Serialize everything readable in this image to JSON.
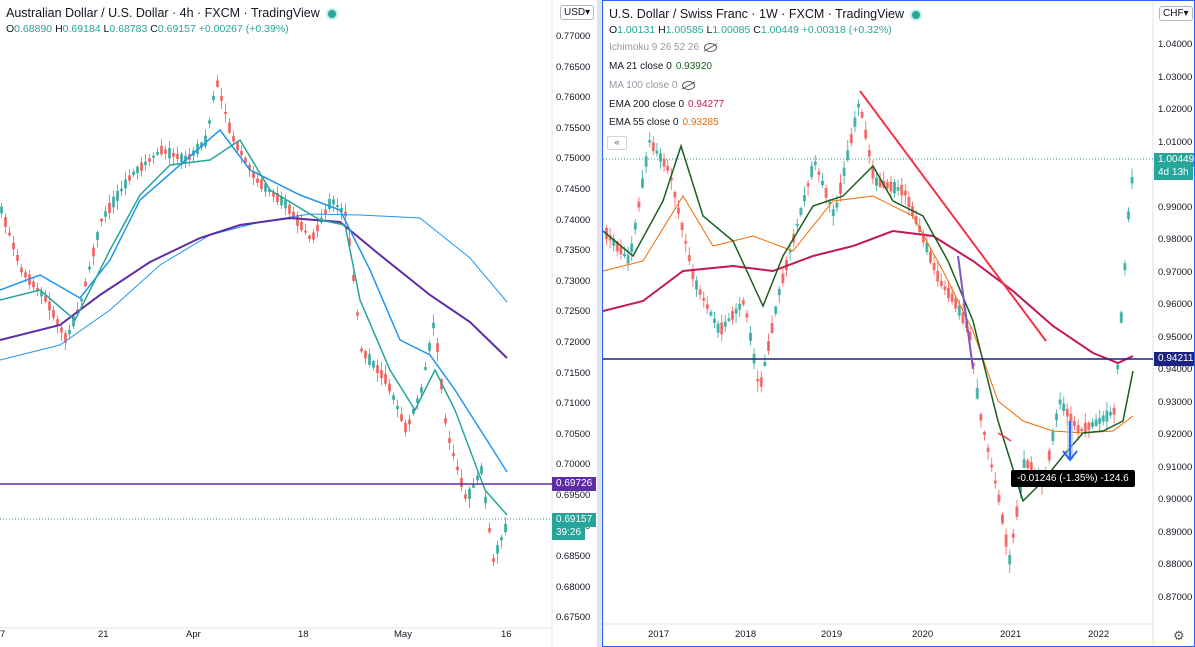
{
  "left_chart": {
    "title": "Australian Dollar / U.S. Dollar · 4h · FXCM · TradingView",
    "ohlc": {
      "o_label": "O",
      "o": "0.68890",
      "h_label": "H",
      "h": "0.69184",
      "l_label": "L",
      "l": "0.68783",
      "c_label": "C",
      "c": "0.69157",
      "chg": "+0.00267 (+0.39%)"
    },
    "currency": "USD▾",
    "price_ticks": [
      "0.77000",
      "0.76500",
      "0.76000",
      "0.75500",
      "0.75000",
      "0.74500",
      "0.74000",
      "0.73500",
      "0.73000",
      "0.72500",
      "0.72000",
      "0.71500",
      "0.71000",
      "0.70500",
      "0.70000",
      "0.69500",
      "0.69000",
      "0.68500",
      "0.68000",
      "0.67500"
    ],
    "time_ticks": [
      "7",
      "21",
      "Apr",
      "18",
      "May",
      "16"
    ],
    "hline_label": "0.69726",
    "last_price": "0.69157",
    "countdown": "39:26",
    "colors": {
      "up": "#26a69a",
      "down": "#ef5350",
      "hline": "#5e2ca5",
      "ema200": "#5e2ca5",
      "ma100": "#2196f3",
      "ema55": "#2196f3",
      "ma21": "#26a69a",
      "ma_fast": "#00897b"
    }
  },
  "right_chart": {
    "title": "U.S. Dollar / Swiss Franc · 1W · FXCM · TradingView",
    "ohlc": {
      "o_label": "O",
      "o": "1.00131",
      "h_label": "H",
      "h": "1.00585",
      "l_label": "L",
      "l": "1.00085",
      "c_label": "C",
      "c": "1.00449",
      "chg": "+0.00318 (+0.32%)"
    },
    "currency": "CHF▾",
    "indicators": [
      {
        "label": "Ichimoku 9 26 52 26",
        "value": "",
        "color": "#9598a1",
        "hidden": true
      },
      {
        "label": "MA 21 close 0",
        "value": "0.93920",
        "color": "#1b5e20",
        "hidden": false
      },
      {
        "label": "MA 100 close 0",
        "value": "",
        "color": "#9598a1",
        "hidden": true
      },
      {
        "label": "EMA 200 close 0",
        "value": "0.94277",
        "color": "#c2185b",
        "hidden": false
      },
      {
        "label": "EMA 55 close 0",
        "value": "0.93285",
        "color": "#ef6c00",
        "hidden": false
      }
    ],
    "collapse_icon": "«",
    "price_ticks": [
      "1.04000",
      "1.03000",
      "1.02000",
      "1.01000",
      "1.00000",
      "0.99000",
      "0.98000",
      "0.97000",
      "0.96000",
      "0.95000",
      "0.94000",
      "0.93000",
      "0.92000",
      "0.91000",
      "0.90000",
      "0.89000",
      "0.88000",
      "0.87000"
    ],
    "time_ticks": [
      "2017",
      "2018",
      "2019",
      "2020",
      "2021",
      "2022"
    ],
    "hline_label": "0.94211",
    "last_price": "1.00449",
    "countdown": "4d 13h",
    "measure_label": "-0.01246 (-1.35%) -124.6",
    "colors": {
      "up": "#26a69a",
      "down": "#ef5350",
      "hline": "#1a237e",
      "trendline": "#f23645",
      "ma21": "#1b5e20",
      "ema200": "#c2185b",
      "ema55": "#ef6c00",
      "measure_arrow": "#2962ff"
    }
  }
}
